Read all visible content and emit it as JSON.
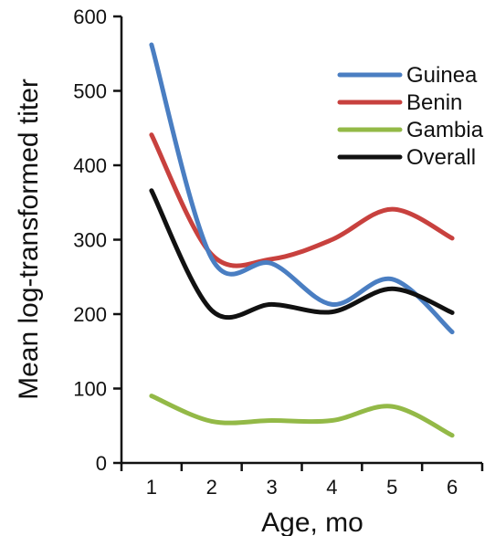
{
  "chart_data": {
    "type": "line",
    "title": "",
    "xlabel": "Age, mo",
    "ylabel": "Mean log-transformed titer",
    "x": [
      1,
      2,
      3,
      4,
      5,
      6
    ],
    "xlim": [
      0.5,
      6.5
    ],
    "ylim": [
      0,
      600
    ],
    "xticks": [
      1,
      2,
      3,
      4,
      5,
      6
    ],
    "yticks": [
      0,
      100,
      200,
      300,
      400,
      500,
      600
    ],
    "grid": false,
    "legend_position": "top-right",
    "series": [
      {
        "name": "Guinea",
        "color": "#4a7ec2",
        "values": [
          562,
          275,
          268,
          213,
          247,
          176
        ]
      },
      {
        "name": "Benin",
        "color": "#c8413e",
        "values": [
          441,
          280,
          274,
          300,
          341,
          302
        ]
      },
      {
        "name": "Gambia",
        "color": "#93b947",
        "values": [
          90,
          56,
          57,
          57,
          76,
          37
        ]
      },
      {
        "name": "Overall",
        "color": "#111111",
        "values": [
          366,
          205,
          213,
          203,
          234,
          202
        ]
      }
    ]
  }
}
